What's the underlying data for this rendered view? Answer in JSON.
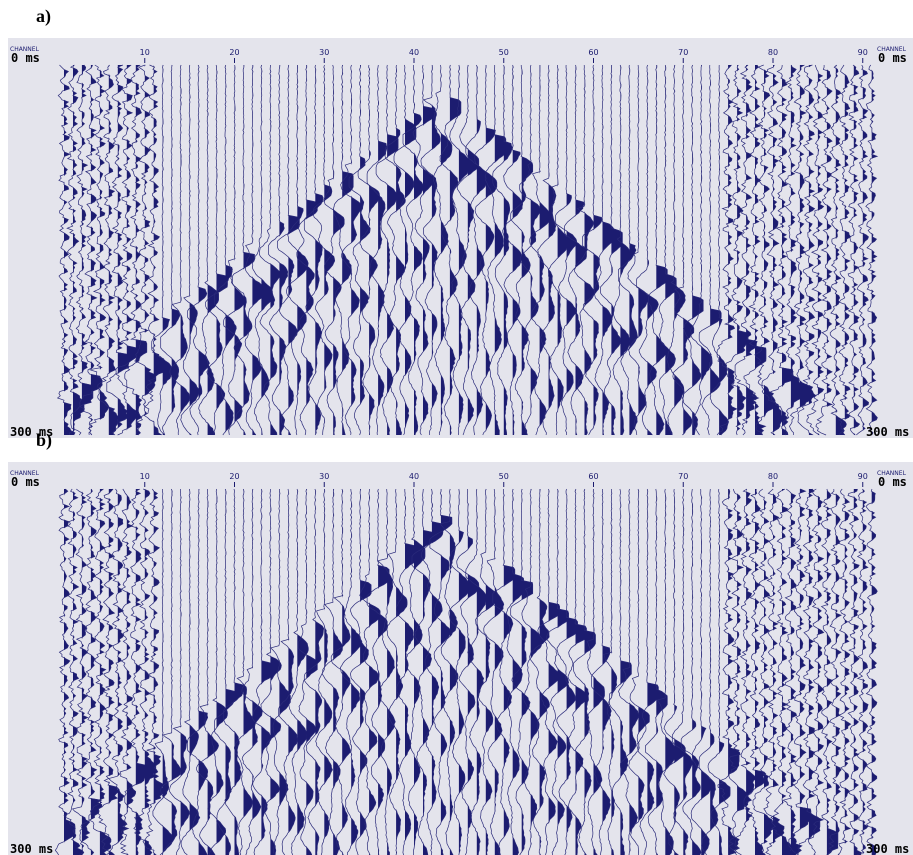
{
  "panels": [
    {
      "label": "a)",
      "channel_label": "CHANNEL",
      "channel_ticks": [
        10,
        20,
        30,
        40,
        50,
        60,
        70,
        80,
        90
      ],
      "time_top": "0 ms",
      "time_bottom": "300 ms"
    },
    {
      "label": "b)",
      "channel_label": "CHANNEL",
      "channel_ticks": [
        10,
        20,
        30,
        40,
        50,
        60,
        70,
        80,
        90
      ],
      "time_top": "0 ms",
      "time_bottom": "300 ms"
    }
  ]
}
